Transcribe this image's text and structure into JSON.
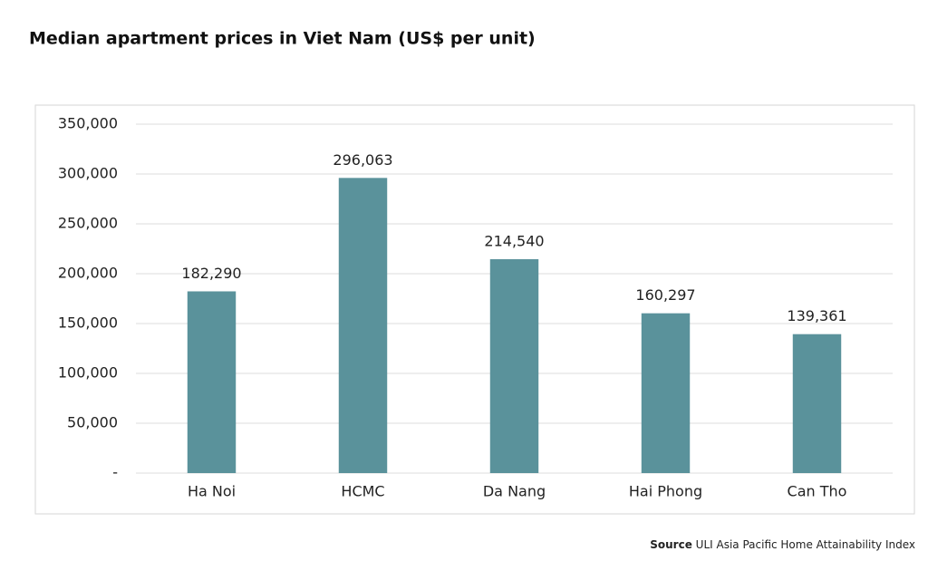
{
  "chart_data": {
    "type": "bar",
    "title": "Median apartment prices in Viet Nam (US$ per unit)",
    "categories": [
      "Ha Noi",
      "HCMC",
      "Da Nang",
      "Hai Phong",
      "Can Tho"
    ],
    "values": [
      182290,
      296063,
      214540,
      160297,
      139361
    ],
    "value_labels": [
      "182,290",
      "296,063",
      "214,540",
      "160,297",
      "139,361"
    ],
    "color": "#5a929b",
    "ylim": [
      0,
      350000
    ],
    "yticks": [
      {
        "value": 0,
        "label": "-"
      },
      {
        "value": 50000,
        "label": "50,000"
      },
      {
        "value": 100000,
        "label": "100,000"
      },
      {
        "value": 150000,
        "label": "150,000"
      },
      {
        "value": 200000,
        "label": "200,000"
      },
      {
        "value": 250000,
        "label": "250,000"
      },
      {
        "value": 300000,
        "label": "300,000"
      },
      {
        "value": 350000,
        "label": "350,000"
      }
    ],
    "grid": true,
    "source_label": "Source",
    "source": "ULI Asia Pacific Home Attainability Index"
  }
}
